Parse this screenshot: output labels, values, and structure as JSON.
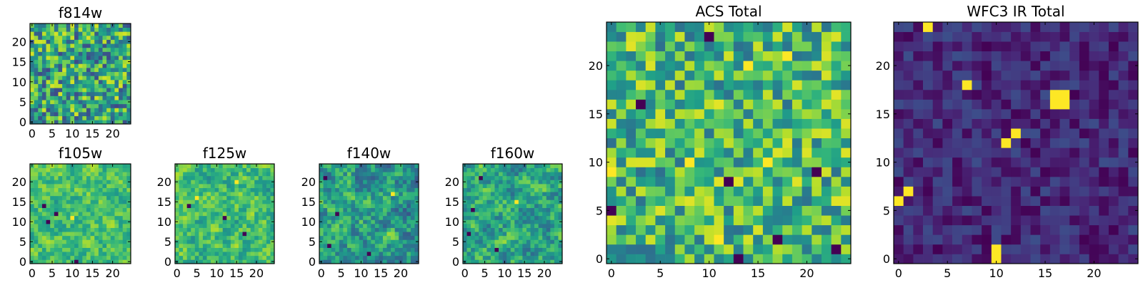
{
  "chart_data": [
    {
      "type": "heatmap",
      "title": "f814w",
      "colormap": "viridis",
      "grid_size": 25,
      "xlim": [
        -0.5,
        24.5
      ],
      "ylim": [
        -0.5,
        24.5
      ],
      "xticks": [
        0,
        5,
        10,
        15,
        20
      ],
      "yticks": [
        0,
        5,
        10,
        15,
        20
      ],
      "xtick_labels": [
        "0",
        "5",
        "10",
        "15",
        "20"
      ],
      "ytick_labels": [
        "0",
        "5",
        "10",
        "15",
        "20"
      ],
      "value_range": [
        0,
        1
      ],
      "pattern": {
        "kind": "noise",
        "base": 0.58,
        "spread": 0.36,
        "seed": 11,
        "hotspots": [],
        "coldspots": []
      }
    },
    {
      "type": "heatmap",
      "title": "f105w",
      "colormap": "viridis",
      "grid_size": 25,
      "xlim": [
        -0.5,
        24.5
      ],
      "ylim": [
        -0.5,
        24.5
      ],
      "xticks": [
        0,
        5,
        10,
        15,
        20
      ],
      "yticks": [
        0,
        5,
        10,
        15,
        20
      ],
      "xtick_labels": [
        "0",
        "5",
        "10",
        "15",
        "20"
      ],
      "ytick_labels": [
        "0",
        "5",
        "10",
        "15",
        "20"
      ],
      "value_range": [
        0,
        1
      ],
      "pattern": {
        "kind": "smooth",
        "base": 0.7,
        "spread": 0.3,
        "seed": 23,
        "hotspots": [
          [
            10,
            11
          ]
        ],
        "coldspots": [
          [
            3,
            14
          ],
          [
            4,
            10
          ],
          [
            11,
            0
          ],
          [
            6,
            12
          ]
        ]
      }
    },
    {
      "type": "heatmap",
      "title": "f125w",
      "colormap": "viridis",
      "grid_size": 25,
      "xlim": [
        -0.5,
        24.5
      ],
      "ylim": [
        -0.5,
        24.5
      ],
      "xticks": [
        0,
        5,
        10,
        15,
        20
      ],
      "yticks": [
        0,
        5,
        10,
        15,
        20
      ],
      "xtick_labels": [
        "0",
        "5",
        "10",
        "15",
        "20"
      ],
      "ytick_labels": [
        "0",
        "5",
        "10",
        "15",
        "20"
      ],
      "value_range": [
        0,
        1
      ],
      "pattern": {
        "kind": "smooth",
        "base": 0.68,
        "spread": 0.32,
        "seed": 37,
        "hotspots": [
          [
            5,
            16
          ],
          [
            15,
            20
          ]
        ],
        "coldspots": [
          [
            3,
            14
          ],
          [
            12,
            11
          ],
          [
            17,
            7
          ]
        ]
      }
    },
    {
      "type": "heatmap",
      "title": "f140w",
      "colormap": "viridis",
      "grid_size": 25,
      "xlim": [
        -0.5,
        24.5
      ],
      "ylim": [
        -0.5,
        24.5
      ],
      "xticks": [
        0,
        5,
        10,
        15,
        20
      ],
      "yticks": [
        0,
        5,
        10,
        15,
        20
      ],
      "xtick_labels": [
        "0",
        "5",
        "10",
        "15",
        "20"
      ],
      "ytick_labels": [
        "0",
        "5",
        "10",
        "15",
        "20"
      ],
      "value_range": [
        0,
        1
      ],
      "pattern": {
        "kind": "smooth",
        "base": 0.55,
        "spread": 0.4,
        "seed": 53,
        "hotspots": [
          [
            18,
            17
          ]
        ],
        "coldspots": [
          [
            1,
            21
          ],
          [
            2,
            4
          ],
          [
            4,
            12
          ],
          [
            12,
            2
          ]
        ]
      }
    },
    {
      "type": "heatmap",
      "title": "f160w",
      "colormap": "viridis",
      "grid_size": 25,
      "xlim": [
        -0.5,
        24.5
      ],
      "ylim": [
        -0.5,
        24.5
      ],
      "xticks": [
        0,
        5,
        10,
        15,
        20
      ],
      "yticks": [
        0,
        5,
        10,
        15,
        20
      ],
      "xtick_labels": [
        "0",
        "5",
        "10",
        "15",
        "20"
      ],
      "ytick_labels": [
        "0",
        "5",
        "10",
        "15",
        "20"
      ],
      "value_range": [
        0,
        1
      ],
      "pattern": {
        "kind": "smooth",
        "base": 0.58,
        "spread": 0.38,
        "seed": 71,
        "hotspots": [
          [
            13,
            15
          ]
        ],
        "coldspots": [
          [
            4,
            21
          ],
          [
            2,
            13
          ],
          [
            8,
            3
          ],
          [
            1,
            7
          ]
        ]
      }
    },
    {
      "type": "heatmap",
      "title": "ACS Total",
      "colormap": "viridis",
      "grid_size": 25,
      "xlim": [
        -0.5,
        24.5
      ],
      "ylim": [
        -0.5,
        24.5
      ],
      "xticks": [
        0,
        5,
        10,
        15,
        20
      ],
      "yticks": [
        0,
        5,
        10,
        15,
        20
      ],
      "xtick_labels": [
        "0",
        "5",
        "10",
        "15",
        "20"
      ],
      "ytick_labels": [
        "0",
        "5",
        "10",
        "15",
        "20"
      ],
      "value_range": [
        0,
        1
      ],
      "pattern": {
        "kind": "noise",
        "base": 0.66,
        "spread": 0.3,
        "seed": 97,
        "hotspots": [
          [
            0,
            9
          ],
          [
            8,
            10
          ],
          [
            16,
            10
          ],
          [
            14,
            20
          ],
          [
            18,
            21
          ],
          [
            11,
            2
          ]
        ],
        "coldspots": [
          [
            10,
            23
          ],
          [
            3,
            16
          ],
          [
            0,
            5
          ],
          [
            12,
            8
          ],
          [
            17,
            2
          ],
          [
            21,
            9
          ],
          [
            13,
            0
          ],
          [
            23,
            1
          ]
        ]
      }
    },
    {
      "type": "heatmap",
      "title": "WFC3 IR Total",
      "colormap": "viridis",
      "grid_size": 25,
      "xlim": [
        -0.5,
        24.5
      ],
      "ylim": [
        -0.5,
        24.5
      ],
      "xticks": [
        0,
        5,
        10,
        15,
        20
      ],
      "yticks": [
        0,
        5,
        10,
        15,
        20
      ],
      "xtick_labels": [
        "0",
        "5",
        "10",
        "15",
        "20"
      ],
      "ytick_labels": [
        "0",
        "5",
        "10",
        "15",
        "20"
      ],
      "value_range": [
        0,
        1
      ],
      "pattern": {
        "kind": "noise",
        "base": 0.12,
        "spread": 0.12,
        "seed": 131,
        "hotspots": [
          [
            3,
            24
          ],
          [
            7,
            18
          ],
          [
            16,
            16
          ],
          [
            17,
            16
          ],
          [
            16,
            17
          ],
          [
            17,
            17
          ],
          [
            11,
            12
          ],
          [
            12,
            13
          ],
          [
            1,
            7
          ],
          [
            0,
            6
          ],
          [
            10,
            1
          ],
          [
            10,
            0
          ]
        ],
        "coldspots": []
      }
    }
  ]
}
